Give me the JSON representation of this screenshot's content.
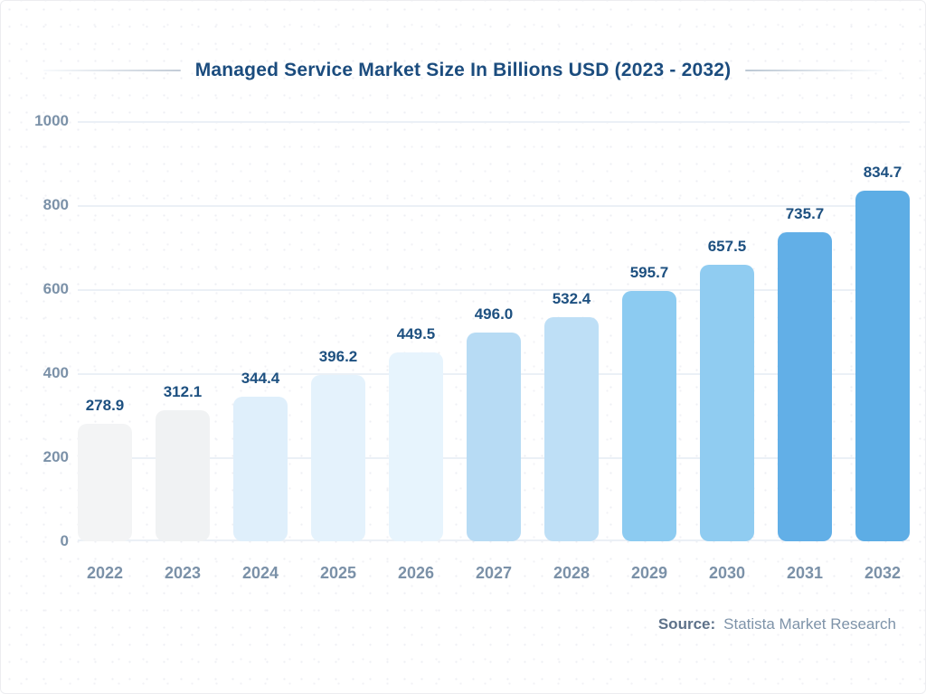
{
  "chart_data": {
    "type": "bar",
    "title": "Managed Service Market Size In Billions USD (2023 - 2032)",
    "categories": [
      "2022",
      "2023",
      "2024",
      "2025",
      "2026",
      "2027",
      "2028",
      "2029",
      "2030",
      "2031",
      "2032"
    ],
    "values": [
      278.9,
      312.1,
      344.4,
      396.2,
      449.5,
      496.0,
      532.4,
      595.7,
      657.5,
      735.7,
      834.7
    ],
    "value_labels": [
      "278.9",
      "312.1",
      "344.4",
      "396.2",
      "449.5",
      "496.0",
      "532.4",
      "595.7",
      "657.5",
      "735.7",
      "834.7"
    ],
    "bar_colors": [
      "#f3f4f5",
      "#f0f2f3",
      "#dfeffb",
      "#e4f2fc",
      "#e7f4fd",
      "#b7dbf4",
      "#bedff6",
      "#8ccbf1",
      "#90ccf1",
      "#62afe7",
      "#5dade5"
    ],
    "xlabel": "",
    "ylabel": "",
    "ylim": [
      0,
      1000
    ],
    "yticks": [
      0,
      200,
      400,
      600,
      800,
      1000
    ],
    "grid": "horizontal",
    "legend": "none"
  },
  "source": {
    "label": "Source:",
    "value": "Statista Market Research"
  },
  "colors": {
    "title_text": "#1b4c7e",
    "value_label_text": "#1d5080",
    "axis_label_text": "#7b91a8",
    "gridline": "#ebf0f6",
    "source_label_text": "#5d7189",
    "source_value_text": "#7e93a9",
    "background": "#ffffff"
  }
}
